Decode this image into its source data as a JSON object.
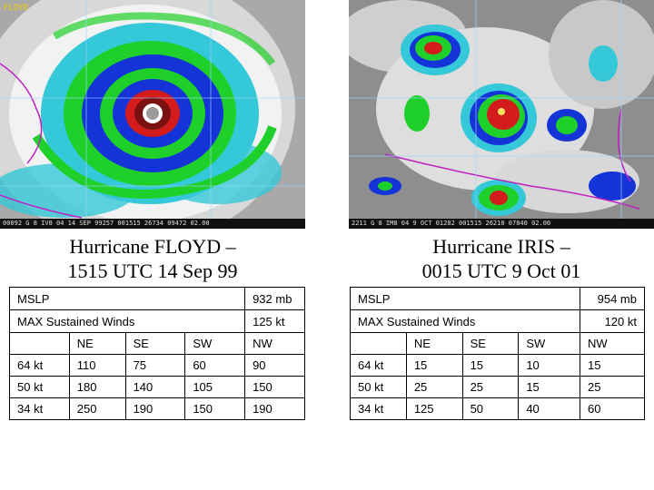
{
  "colors": {
    "cloud_white": "#f2f2f2",
    "cloud_gray": "#b8b8b8",
    "cyan": "#35c8d8",
    "green": "#1fd02a",
    "blue": "#1434d8",
    "red": "#d41c1c",
    "maroon": "#7a1010",
    "coast_magenta": "#c020c0"
  },
  "floyd": {
    "image_label": "FLOYD",
    "image_strip": "00092 G 8 IV8  04 14 SEP 99257 001515 26734 09472 02.00",
    "title_line1": "Hurricane FLOYD –",
    "title_line2": "1515 UTC 14 Sep 99",
    "mslp_label": "MSLP",
    "mslp_value": "932 mb",
    "winds_label": "MAX Sustained Winds",
    "winds_value": "125 kt",
    "quadrants": [
      "NE",
      "SE",
      "SW",
      "NW"
    ],
    "rows": [
      {
        "label": "64 kt",
        "values": [
          "110",
          "75",
          "60",
          "90"
        ]
      },
      {
        "label": "50 kt",
        "values": [
          "180",
          "140",
          "105",
          "150"
        ]
      },
      {
        "label": "34 kt",
        "values": [
          "250",
          "190",
          "150",
          "190"
        ]
      }
    ]
  },
  "iris": {
    "image_strip": "2211 G 8 IM8  04 9 OCT 01282 001515 26210 07840 02.00",
    "title_line1": "Hurricane IRIS –",
    "title_line2": "0015 UTC 9 Oct 01",
    "mslp_label": "MSLP",
    "mslp_value": "954 mb",
    "winds_label": "MAX Sustained Winds",
    "winds_value": "120 kt",
    "quadrants": [
      "NE",
      "SE",
      "SW",
      "NW"
    ],
    "rows": [
      {
        "label": "64 kt",
        "values": [
          "15",
          "15",
          "10",
          "15"
        ]
      },
      {
        "label": "50 kt",
        "values": [
          "25",
          "25",
          "15",
          "25"
        ]
      },
      {
        "label": "34 kt",
        "values": [
          "125",
          "50",
          "40",
          "60"
        ]
      }
    ]
  }
}
